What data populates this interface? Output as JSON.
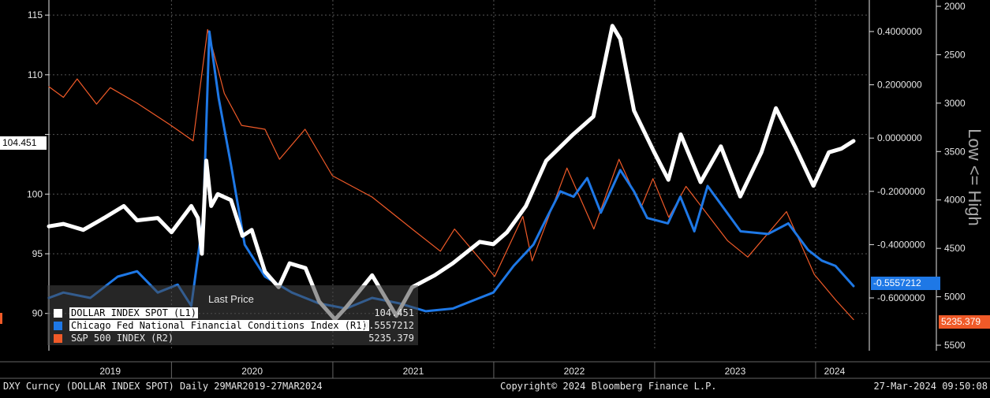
{
  "chart_data": {
    "type": "line",
    "x_range": [
      "2019-03-29",
      "2024-03-27"
    ],
    "x_tick_labels": [
      "2019",
      "2020",
      "2021",
      "2022",
      "2023",
      "2024"
    ],
    "axes": {
      "left": {
        "ylim": [
          88,
          116
        ],
        "ticks": [
          90,
          95,
          100,
          105,
          110,
          115
        ],
        "tick_labels": [
          "90",
          "95",
          "100",
          "",
          "110",
          "115"
        ]
      },
      "right1": {
        "ylim": [
          -0.78,
          0.5
        ],
        "ticks": [
          0.4,
          0.2,
          0.0,
          -0.2,
          -0.4,
          -0.6
        ],
        "tick_labels": [
          "0.4000000",
          "0.2000000",
          "0.0000000",
          "-0.2000000",
          "-0.4000000",
          "-0.6000000"
        ],
        "label": "Low <= High"
      },
      "right2": {
        "ylim": [
          2000,
          5550
        ],
        "ticks": [
          2000,
          2500,
          3000,
          3500,
          4000,
          4500,
          5000,
          5500
        ],
        "tick_labels": [
          "2000",
          "2500",
          "3000",
          "3500",
          "4000",
          "4500",
          "5000",
          "5500"
        ],
        "inverted": true
      }
    },
    "series": [
      {
        "name": "DOLLAR INDEX SPOT (L1)",
        "axis": "left",
        "color": "#ffffff",
        "last": "104.451",
        "points": [
          [
            "2019-03-29",
            97.3
          ],
          [
            "2019-05-01",
            97.5
          ],
          [
            "2019-06-15",
            97.0
          ],
          [
            "2019-08-01",
            98.0
          ],
          [
            "2019-09-15",
            99.0
          ],
          [
            "2019-10-15",
            97.8
          ],
          [
            "2019-12-01",
            98.0
          ],
          [
            "2020-01-01",
            96.8
          ],
          [
            "2020-02-15",
            99.0
          ],
          [
            "2020-03-01",
            98.0
          ],
          [
            "2020-03-10",
            95.0
          ],
          [
            "2020-03-20",
            102.8
          ],
          [
            "2020-03-31",
            99.0
          ],
          [
            "2020-04-15",
            100.0
          ],
          [
            "2020-05-15",
            99.5
          ],
          [
            "2020-06-10",
            96.5
          ],
          [
            "2020-07-01",
            97.0
          ],
          [
            "2020-07-31",
            93.5
          ],
          [
            "2020-08-31",
            92.2
          ],
          [
            "2020-09-25",
            94.2
          ],
          [
            "2020-10-31",
            93.8
          ],
          [
            "2020-12-01",
            91.0
          ],
          [
            "2021-01-06",
            89.5
          ],
          [
            "2021-01-31",
            90.5
          ],
          [
            "2021-03-31",
            93.2
          ],
          [
            "2021-05-25",
            89.8
          ],
          [
            "2021-06-30",
            92.2
          ],
          [
            "2021-08-20",
            93.2
          ],
          [
            "2021-09-30",
            94.2
          ],
          [
            "2021-11-30",
            96.0
          ],
          [
            "2021-12-31",
            95.8
          ],
          [
            "2022-01-31",
            96.8
          ],
          [
            "2022-03-15",
            99.0
          ],
          [
            "2022-04-30",
            102.8
          ],
          [
            "2022-06-30",
            105.0
          ],
          [
            "2022-08-15",
            106.5
          ],
          [
            "2022-09-27",
            114.1
          ],
          [
            "2022-10-15",
            113.0
          ],
          [
            "2022-11-15",
            107.0
          ],
          [
            "2022-12-31",
            103.5
          ],
          [
            "2023-02-01",
            101.2
          ],
          [
            "2023-03-01",
            105.0
          ],
          [
            "2023-04-15",
            101.0
          ],
          [
            "2023-05-31",
            104.0
          ],
          [
            "2023-07-14",
            99.8
          ],
          [
            "2023-08-31",
            103.5
          ],
          [
            "2023-10-03",
            107.2
          ],
          [
            "2023-11-15",
            104.0
          ],
          [
            "2023-12-27",
            100.7
          ],
          [
            "2024-01-31",
            103.5
          ],
          [
            "2024-02-28",
            103.8
          ],
          [
            "2024-03-27",
            104.451
          ]
        ]
      },
      {
        "name": "Chicago Fed National Financial Conditions Index (R1)",
        "axis": "right1",
        "color": "#1e78e6",
        "last": "-0.5557212",
        "points": [
          [
            "2019-03-29",
            -0.6
          ],
          [
            "2019-05-01",
            -0.58
          ],
          [
            "2019-07-01",
            -0.6
          ],
          [
            "2019-09-01",
            -0.52
          ],
          [
            "2019-10-15",
            -0.5
          ],
          [
            "2019-12-01",
            -0.58
          ],
          [
            "2020-01-15",
            -0.55
          ],
          [
            "2020-02-15",
            -0.63
          ],
          [
            "2020-03-13",
            -0.3
          ],
          [
            "2020-03-27",
            0.4
          ],
          [
            "2020-04-17",
            0.15
          ],
          [
            "2020-05-15",
            -0.1
          ],
          [
            "2020-06-15",
            -0.4
          ],
          [
            "2020-07-31",
            -0.52
          ],
          [
            "2020-09-30",
            -0.58
          ],
          [
            "2020-11-30",
            -0.62
          ],
          [
            "2021-01-31",
            -0.64
          ],
          [
            "2021-03-31",
            -0.6
          ],
          [
            "2021-05-31",
            -0.62
          ],
          [
            "2021-07-31",
            -0.65
          ],
          [
            "2021-09-30",
            -0.64
          ],
          [
            "2021-11-30",
            -0.6
          ],
          [
            "2021-12-31",
            -0.58
          ],
          [
            "2022-02-15",
            -0.48
          ],
          [
            "2022-04-01",
            -0.4
          ],
          [
            "2022-05-01",
            -0.3
          ],
          [
            "2022-06-01",
            -0.2
          ],
          [
            "2022-07-01",
            -0.22
          ],
          [
            "2022-08-01",
            -0.15
          ],
          [
            "2022-09-01",
            -0.28
          ],
          [
            "2022-10-15",
            -0.12
          ],
          [
            "2022-11-15",
            -0.2
          ],
          [
            "2022-12-15",
            -0.3
          ],
          [
            "2023-01-31",
            -0.32
          ],
          [
            "2023-02-28",
            -0.22
          ],
          [
            "2023-04-01",
            -0.35
          ],
          [
            "2023-05-01",
            -0.18
          ],
          [
            "2023-06-01",
            -0.25
          ],
          [
            "2023-07-15",
            -0.35
          ],
          [
            "2023-09-15",
            -0.36
          ],
          [
            "2023-10-31",
            -0.32
          ],
          [
            "2023-12-15",
            -0.42
          ],
          [
            "2024-01-15",
            -0.46
          ],
          [
            "2024-02-15",
            -0.48
          ],
          [
            "2024-03-27",
            -0.5557212
          ]
        ]
      },
      {
        "name": "S&P 500 INDEX (R2)",
        "axis": "right2",
        "color": "#f05a28",
        "last": "5235.379",
        "points": [
          [
            "2019-03-29",
            2830
          ],
          [
            "2019-05-01",
            2940
          ],
          [
            "2019-06-01",
            2750
          ],
          [
            "2019-07-15",
            3010
          ],
          [
            "2019-08-15",
            2840
          ],
          [
            "2019-10-15",
            3000
          ],
          [
            "2019-12-31",
            3230
          ],
          [
            "2020-02-19",
            3390
          ],
          [
            "2020-03-23",
            2240
          ],
          [
            "2020-04-30",
            2900
          ],
          [
            "2020-06-08",
            3230
          ],
          [
            "2020-07-31",
            3270
          ],
          [
            "2020-09-02",
            3580
          ],
          [
            "2020-10-30",
            3270
          ],
          [
            "2020-12-31",
            3750
          ],
          [
            "2021-03-31",
            3970
          ],
          [
            "2021-06-30",
            4300
          ],
          [
            "2021-09-02",
            4530
          ],
          [
            "2021-10-04",
            4300
          ],
          [
            "2022-01-03",
            4790
          ],
          [
            "2022-03-08",
            4170
          ],
          [
            "2022-03-29",
            4630
          ],
          [
            "2022-06-16",
            3670
          ],
          [
            "2022-08-16",
            4300
          ],
          [
            "2022-10-12",
            3580
          ],
          [
            "2022-12-01",
            4080
          ],
          [
            "2022-12-28",
            3780
          ],
          [
            "2023-02-02",
            4180
          ],
          [
            "2023-03-13",
            3860
          ],
          [
            "2023-06-15",
            4420
          ],
          [
            "2023-07-31",
            4590
          ],
          [
            "2023-10-27",
            4120
          ],
          [
            "2023-12-29",
            4770
          ],
          [
            "2024-02-15",
            5030
          ],
          [
            "2024-03-27",
            5235.379
          ]
        ]
      }
    ],
    "legend": {
      "title": "Last Price",
      "placement": "bottom-left"
    },
    "last_price_tags": {
      "left": "104.451",
      "right1": "-0.5557212",
      "right2": "5235.379"
    }
  },
  "footer": {
    "left": "DXY Curncy (DOLLAR INDEX SPOT)  Daily 29MAR2019-27MAR2024",
    "center": "Copyright© 2024 Bloomberg Finance L.P.",
    "right": "27-Mar-2024 09:50:08"
  }
}
